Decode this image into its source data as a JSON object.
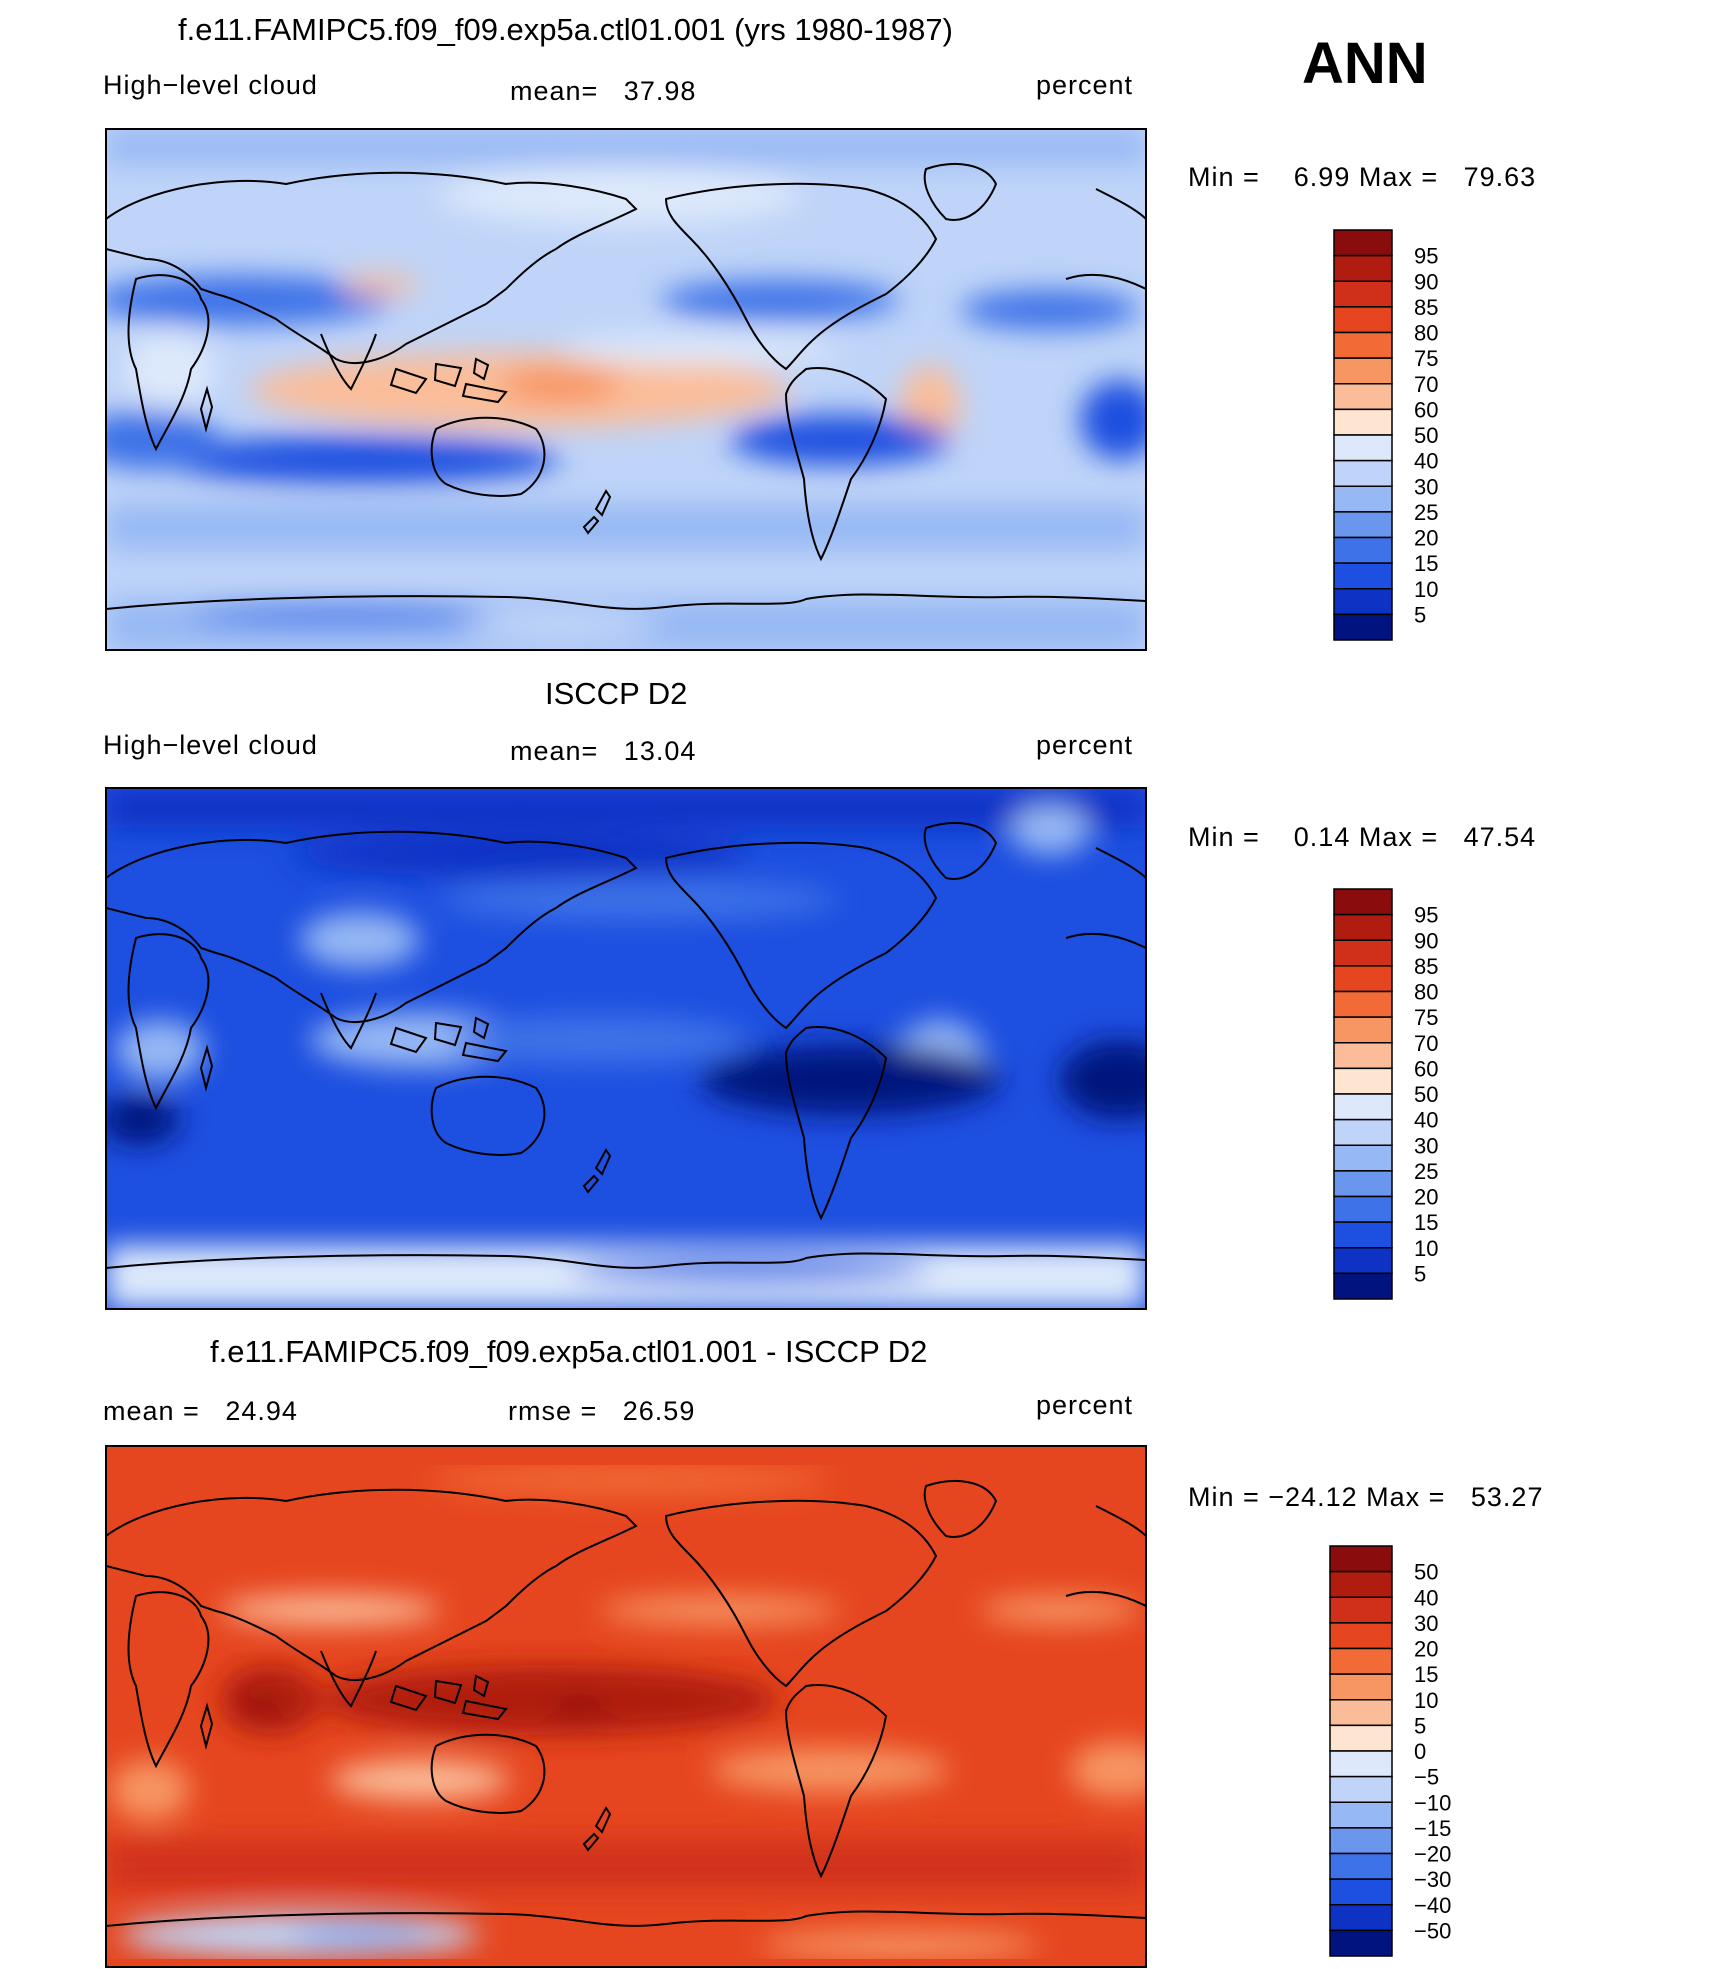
{
  "season": "ANN",
  "panels": [
    {
      "title": "f.e11.FAMIPC5.f09_f09.exp5a.ctl01.001 (yrs 1980-1987)",
      "left_label": "High−level cloud",
      "center_label": "mean=   37.98",
      "right_label": "percent",
      "minmax": "Min =    6.99 Max =   79.63"
    },
    {
      "title": "ISCCP D2",
      "left_label": "High−level cloud",
      "center_label": "mean=   13.04",
      "right_label": "percent",
      "minmax": "Min =    0.14 Max =   47.54"
    },
    {
      "title": "f.e11.FAMIPC5.f09_f09.exp5a.ctl01.001 - ISCCP D2",
      "left_label": "mean =   24.94",
      "center_label": "rmse =   26.59",
      "right_label": "percent",
      "minmax": "Min = −24.12 Max =   53.27"
    }
  ],
  "chart_data": [
    {
      "type": "heatmap",
      "title": "f.e11.FAMIPC5.f09_f09.exp5a.ctl01.001 (yrs 1980-1987)",
      "variable": "High-level cloud",
      "units": "percent",
      "mean": 37.98,
      "min": 6.99,
      "max": 79.63,
      "colorbar_levels": [
        95,
        90,
        85,
        80,
        75,
        70,
        60,
        50,
        40,
        30,
        25,
        20,
        15,
        10,
        5
      ],
      "colorbar_colors": [
        "#8b0c0c",
        "#b01d10",
        "#d0301a",
        "#e6461f",
        "#f26a35",
        "#f79563",
        "#fbbd99",
        "#fde5d1",
        "#dde9fb",
        "#bfd4f8",
        "#96b8f4",
        "#6a96ee",
        "#3d72e8",
        "#1d4fe0",
        "#0e33c4",
        "#00137e"
      ]
    },
    {
      "type": "heatmap",
      "title": "ISCCP D2",
      "variable": "High-level cloud",
      "units": "percent",
      "mean": 13.04,
      "min": 0.14,
      "max": 47.54,
      "colorbar_levels": [
        95,
        90,
        85,
        80,
        75,
        70,
        60,
        50,
        40,
        30,
        25,
        20,
        15,
        10,
        5
      ],
      "colorbar_colors": [
        "#8b0c0c",
        "#b01d10",
        "#d0301a",
        "#e6461f",
        "#f26a35",
        "#f79563",
        "#fbbd99",
        "#fde5d1",
        "#dde9fb",
        "#bfd4f8",
        "#96b8f4",
        "#6a96ee",
        "#3d72e8",
        "#1d4fe0",
        "#0e33c4",
        "#00137e"
      ]
    },
    {
      "type": "heatmap",
      "title": "f.e11.FAMIPC5.f09_f09.exp5a.ctl01.001 - ISCCP D2",
      "units": "percent",
      "mean": 24.94,
      "rmse": 26.59,
      "min": -24.12,
      "max": 53.27,
      "colorbar_levels": [
        "50",
        "40",
        "30",
        "20",
        "15",
        "10",
        "5",
        "0",
        "−5",
        "−10",
        "−15",
        "−20",
        "−30",
        "−40",
        "−50"
      ],
      "colorbar_colors": [
        "#8b0c0c",
        "#b01d10",
        "#d0301a",
        "#e6461f",
        "#f26a35",
        "#f79563",
        "#fbbd99",
        "#fde5d1",
        "#dde9fb",
        "#bfd4f8",
        "#96b8f4",
        "#6a96ee",
        "#3d72e8",
        "#1d4fe0",
        "#0e33c4",
        "#00137e"
      ]
    }
  ]
}
